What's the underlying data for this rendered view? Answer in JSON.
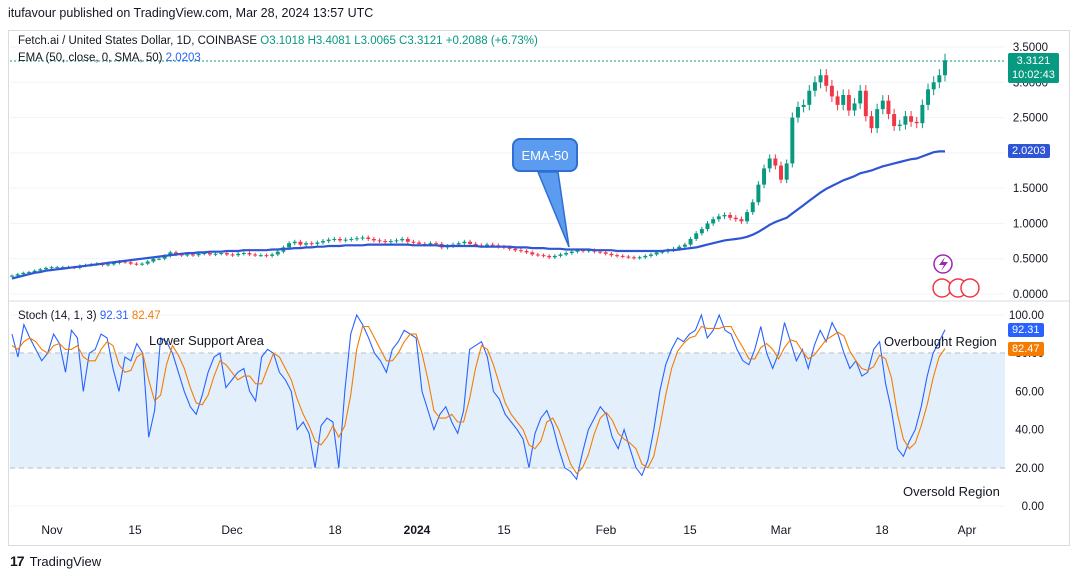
{
  "publisher": "itufavour published on TradingView.com, Mar 28, 2024 13:57 UTC",
  "footer_brand": "TradingView",
  "legend": {
    "symbol": "Fetch.ai / United States Dollar, 1D, COINBASE",
    "ohlc": {
      "o": "O3.1018",
      "h": "H3.4081",
      "l": "L3.0065",
      "c": "C3.3121",
      "chg": "+0.2088 (+6.73%)"
    },
    "ema_label": "EMA (50, close, 0, SMA, 50)",
    "ema_value": "2.0203",
    "stoch_label": "Stoch (14, 1, 3)",
    "stoch_k": "92.31",
    "stoch_d": "82.47"
  },
  "annotations": {
    "callout": "EMA-50",
    "lower_support": "Lower Support Area",
    "overbought": "Overbought Region",
    "oversold": "Oversold Region"
  },
  "tags": {
    "price": "3.3121",
    "countdown": "10:02:43",
    "ema": "2.0203",
    "k": "92.31",
    "d": "82.47"
  },
  "colors": {
    "up": "#089981",
    "down": "#f23645",
    "ema": "#2f55d4",
    "stoch_k": "#2962ff",
    "stoch_d": "#f57c00",
    "band": "#e3f0fc"
  },
  "chart_data": [
    {
      "type": "candlestick",
      "title": "Fetch.ai / United States Dollar, 1D, COINBASE",
      "ylim": [
        0.0,
        3.5
      ],
      "y_ticks": [
        "3.5000",
        "3.0000",
        "2.5000",
        "2.0000",
        "1.5000",
        "1.0000",
        "0.5000",
        "0.0000"
      ],
      "x_ticks": [
        "Nov",
        "15",
        "Dec",
        "18",
        "2024",
        "15",
        "Feb",
        "15",
        "Mar",
        "18",
        "Apr"
      ],
      "close_series": [
        0.26,
        0.28,
        0.3,
        0.31,
        0.33,
        0.35,
        0.37,
        0.38,
        0.38,
        0.38,
        0.38,
        0.37,
        0.4,
        0.41,
        0.42,
        0.43,
        0.41,
        0.42,
        0.44,
        0.46,
        0.45,
        0.43,
        0.42,
        0.43,
        0.46,
        0.5,
        0.5,
        0.54,
        0.59,
        0.56,
        0.55,
        0.56,
        0.55,
        0.57,
        0.58,
        0.56,
        0.57,
        0.58,
        0.56,
        0.55,
        0.57,
        0.58,
        0.56,
        0.55,
        0.55,
        0.54,
        0.56,
        0.6,
        0.66,
        0.72,
        0.74,
        0.7,
        0.72,
        0.71,
        0.73,
        0.75,
        0.77,
        0.78,
        0.76,
        0.77,
        0.78,
        0.79,
        0.8,
        0.78,
        0.76,
        0.75,
        0.74,
        0.75,
        0.76,
        0.78,
        0.74,
        0.73,
        0.71,
        0.7,
        0.72,
        0.71,
        0.66,
        0.68,
        0.7,
        0.72,
        0.74,
        0.71,
        0.69,
        0.68,
        0.7,
        0.69,
        0.67,
        0.66,
        0.64,
        0.62,
        0.61,
        0.59,
        0.56,
        0.55,
        0.54,
        0.52,
        0.54,
        0.56,
        0.58,
        0.6,
        0.62,
        0.61,
        0.62,
        0.6,
        0.59,
        0.57,
        0.55,
        0.54,
        0.53,
        0.52,
        0.51,
        0.52,
        0.54,
        0.56,
        0.59,
        0.6,
        0.62,
        0.64,
        0.67,
        0.7,
        0.78,
        0.86,
        0.92,
        1.0,
        1.06,
        1.1,
        1.12,
        1.08,
        1.06,
        1.03,
        1.16,
        1.3,
        1.55,
        1.78,
        1.92,
        1.82,
        1.62,
        1.85,
        2.5,
        2.65,
        2.68,
        2.88,
        3.0,
        3.1,
        2.95,
        2.8,
        2.68,
        2.82,
        2.6,
        2.7,
        2.88,
        2.52,
        2.35,
        2.62,
        2.74,
        2.55,
        2.38,
        2.4,
        2.52,
        2.44,
        2.42,
        2.68,
        2.9,
        3.0,
        3.1,
        3.3121
      ],
      "ema50_series": [
        0.22,
        0.24,
        0.26,
        0.28,
        0.3,
        0.31,
        0.33,
        0.34,
        0.35,
        0.36,
        0.37,
        0.38,
        0.39,
        0.4,
        0.41,
        0.42,
        0.43,
        0.44,
        0.45,
        0.46,
        0.47,
        0.48,
        0.49,
        0.5,
        0.51,
        0.52,
        0.53,
        0.54,
        0.55,
        0.56,
        0.57,
        0.58,
        0.58,
        0.59,
        0.59,
        0.6,
        0.6,
        0.6,
        0.61,
        0.61,
        0.61,
        0.62,
        0.62,
        0.62,
        0.62,
        0.62,
        0.63,
        0.63,
        0.64,
        0.64,
        0.65,
        0.65,
        0.66,
        0.66,
        0.67,
        0.67,
        0.68,
        0.68,
        0.68,
        0.69,
        0.69,
        0.69,
        0.69,
        0.7,
        0.7,
        0.7,
        0.7,
        0.7,
        0.7,
        0.7,
        0.7,
        0.69,
        0.69,
        0.69,
        0.69,
        0.69,
        0.68,
        0.68,
        0.68,
        0.68,
        0.68,
        0.68,
        0.68,
        0.67,
        0.67,
        0.67,
        0.67,
        0.67,
        0.67,
        0.66,
        0.66,
        0.66,
        0.65,
        0.65,
        0.65,
        0.64,
        0.64,
        0.64,
        0.63,
        0.63,
        0.63,
        0.63,
        0.63,
        0.62,
        0.62,
        0.62,
        0.62,
        0.61,
        0.61,
        0.61,
        0.61,
        0.61,
        0.61,
        0.61,
        0.61,
        0.61,
        0.62,
        0.62,
        0.63,
        0.64,
        0.65,
        0.66,
        0.68,
        0.7,
        0.72,
        0.74,
        0.76,
        0.77,
        0.78,
        0.79,
        0.81,
        0.84,
        0.88,
        0.93,
        0.98,
        1.02,
        1.05,
        1.08,
        1.14,
        1.2,
        1.26,
        1.32,
        1.38,
        1.44,
        1.49,
        1.53,
        1.57,
        1.61,
        1.64,
        1.67,
        1.71,
        1.73,
        1.75,
        1.78,
        1.81,
        1.83,
        1.85,
        1.87,
        1.89,
        1.91,
        1.92,
        1.95,
        1.98,
        2.01,
        2.02,
        2.0203
      ]
    },
    {
      "type": "line",
      "title": "Stoch (14, 1, 3)",
      "ylim": [
        0,
        100
      ],
      "y_ticks": [
        "100.00",
        "80.00",
        "60.00",
        "40.00",
        "20.00",
        "0.00"
      ],
      "reference_lines": [
        80,
        50,
        20
      ],
      "series": [
        {
          "name": "K",
          "values": [
            90,
            78,
            95,
            88,
            82,
            76,
            80,
            90,
            85,
            70,
            92,
            88,
            60,
            80,
            82,
            90,
            88,
            72,
            60,
            78,
            76,
            85,
            80,
            36,
            50,
            88,
            86,
            80,
            70,
            60,
            52,
            48,
            58,
            70,
            78,
            80,
            62,
            66,
            70,
            72,
            60,
            55,
            78,
            82,
            80,
            70,
            66,
            60,
            40,
            44,
            38,
            20,
            42,
            46,
            44,
            20,
            60,
            90,
            100,
            95,
            88,
            80,
            76,
            70,
            82,
            86,
            92,
            90,
            88,
            60,
            50,
            40,
            48,
            52,
            44,
            38,
            50,
            82,
            84,
            86,
            78,
            60,
            56,
            48,
            44,
            40,
            35,
            20,
            38,
            46,
            50,
            42,
            30,
            20,
            18,
            14,
            28,
            40,
            46,
            52,
            48,
            36,
            30,
            40,
            30,
            20,
            16,
            24,
            40,
            60,
            74,
            82,
            88,
            86,
            90,
            92,
            100,
            88,
            92,
            100,
            92,
            90,
            82,
            76,
            74,
            82,
            94,
            80,
            72,
            80,
            96,
            86,
            76,
            82,
            72,
            84,
            92,
            86,
            96,
            90,
            80,
            72,
            76,
            68,
            70,
            82,
            86,
            64,
            50,
            30,
            26,
            34,
            40,
            52,
            68,
            80,
            86,
            92.31
          ]
        },
        {
          "name": "D",
          "values": [
            84,
            82,
            86,
            88,
            86,
            82,
            80,
            84,
            85,
            82,
            82,
            84,
            78,
            76,
            76,
            82,
            86,
            84,
            74,
            70,
            71,
            78,
            80,
            66,
            55,
            58,
            74,
            84,
            79,
            72,
            62,
            54,
            53,
            58,
            68,
            76,
            74,
            70,
            66,
            68,
            68,
            64,
            64,
            72,
            80,
            78,
            72,
            66,
            56,
            48,
            42,
            34,
            32,
            36,
            42,
            36,
            42,
            58,
            82,
            94,
            94,
            88,
            82,
            76,
            76,
            80,
            86,
            90,
            90,
            80,
            66,
            50,
            46,
            46,
            48,
            44,
            44,
            56,
            72,
            84,
            82,
            74,
            64,
            54,
            48,
            44,
            40,
            32,
            30,
            34,
            44,
            46,
            40,
            31,
            22,
            17,
            20,
            27,
            38,
            46,
            49,
            45,
            38,
            35,
            33,
            30,
            22,
            20,
            26,
            41,
            58,
            72,
            81,
            85,
            88,
            89,
            94,
            93,
            93,
            93,
            94,
            94,
            88,
            83,
            77,
            77,
            83,
            85,
            82,
            77,
            83,
            87,
            86,
            81,
            77,
            79,
            83,
            87,
            89,
            91,
            89,
            81,
            76,
            72,
            71,
            73,
            79,
            77,
            67,
            48,
            35,
            30,
            33,
            42,
            53,
            67,
            78,
            82.47
          ]
        }
      ]
    }
  ]
}
